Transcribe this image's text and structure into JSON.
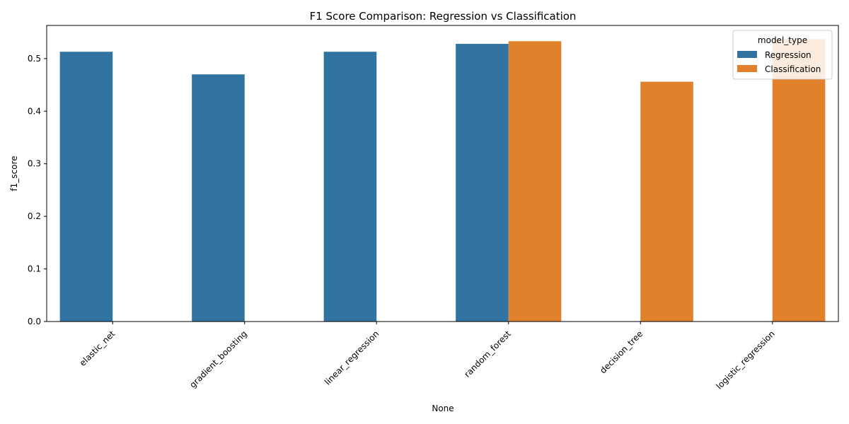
{
  "chart_data": {
    "type": "bar",
    "title": "F1 Score Comparison: Regression vs Classification",
    "xlabel": "None",
    "ylabel": "f1_score",
    "categories": [
      "elastic_net",
      "gradient_boosting",
      "linear_regression",
      "random_forest",
      "decision_tree",
      "logistic_regression"
    ],
    "series": [
      {
        "name": "Regression",
        "color": "#3274a1",
        "values": [
          0.513,
          0.47,
          0.513,
          0.528,
          null,
          null
        ]
      },
      {
        "name": "Classification",
        "color": "#e1812c",
        "values": [
          null,
          null,
          null,
          0.533,
          0.456,
          0.537
        ]
      }
    ],
    "ylim": [
      0,
      0.563
    ],
    "yticks": [
      0.0,
      0.1,
      0.2,
      0.3,
      0.4,
      0.5
    ],
    "ytick_labels": [
      "0.0",
      "0.1",
      "0.2",
      "0.3",
      "0.4",
      "0.5"
    ],
    "grid": false,
    "legend": {
      "title": "model_type",
      "placement": "top-right",
      "entries": [
        "Regression",
        "Classification"
      ]
    }
  }
}
